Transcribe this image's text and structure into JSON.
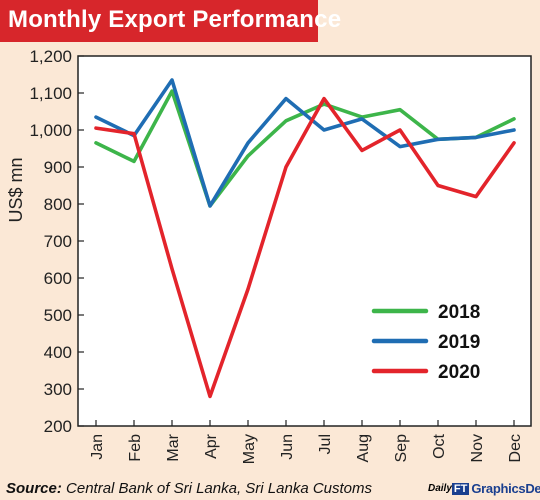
{
  "title": "Monthly Export Performance",
  "source_label": "Source:",
  "source_text": "Central Bank of Sri Lanka, Sri Lanka Customs",
  "credit": {
    "daily": "Daily",
    "ft": "FT",
    "desk": "GraphicsDesk"
  },
  "colors": {
    "title_bg": "#d7262b",
    "background": "#fbe8d6",
    "plot_bg": "#ffffff",
    "axis": "#222222"
  },
  "chart_data": {
    "type": "line",
    "title": "Monthly Export Performance",
    "xlabel": "",
    "ylabel": "US$ mn",
    "ylim": [
      200,
      1200
    ],
    "yticks": [
      "200",
      "300",
      "400",
      "500",
      "600",
      "700",
      "800",
      "900",
      "1,000",
      "1,100",
      "1,200"
    ],
    "categories": [
      "Jan",
      "Feb",
      "Mar",
      "Apr",
      "May",
      "Jun",
      "Jul",
      "Aug",
      "Sep",
      "Oct",
      "Nov",
      "Dec"
    ],
    "grid": false,
    "legend_position": "bottom-right",
    "series": [
      {
        "name": "2018",
        "color": "#3db54a",
        "values": [
          965,
          915,
          1105,
          795,
          930,
          1025,
          1070,
          1035,
          1055,
          975,
          980,
          1030
        ]
      },
      {
        "name": "2019",
        "color": "#1f6db3",
        "values": [
          1035,
          985,
          1135,
          795,
          965,
          1085,
          1000,
          1030,
          955,
          975,
          980,
          1000
        ]
      },
      {
        "name": "2020",
        "color": "#e3242b",
        "values": [
          1005,
          990,
          625,
          280,
          570,
          900,
          1085,
          945,
          1000,
          850,
          820,
          965
        ]
      }
    ]
  }
}
